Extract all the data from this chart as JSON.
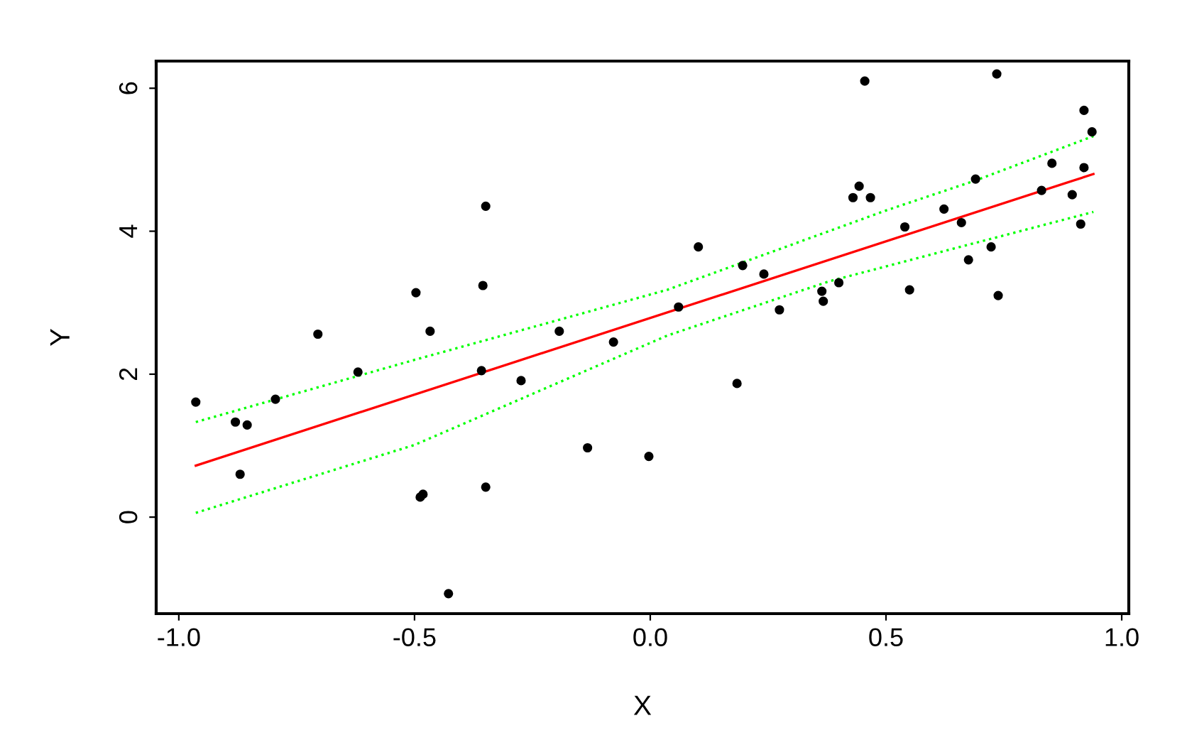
{
  "chart_data": {
    "type": "scatter",
    "xlabel": "X",
    "ylabel": "Y",
    "xlim": [
      -1.048,
      1.015
    ],
    "ylim": [
      -1.35,
      6.38
    ],
    "xticks": [
      {
        "value": -1,
        "label": "-1.0"
      },
      {
        "value": -0.5,
        "label": "-0.5"
      },
      {
        "value": 0,
        "label": "0.0"
      },
      {
        "value": 0.5,
        "label": "0.5"
      },
      {
        "value": 1,
        "label": "1.0"
      }
    ],
    "yticks": [
      0,
      2,
      4,
      6
    ],
    "grid": false,
    "legend": false,
    "series": [
      {
        "color": "#000000",
        "marker": "circle",
        "x": [
          -0.964,
          -0.88,
          -0.855,
          -0.87,
          -0.795,
          -0.705,
          -0.62,
          -0.497,
          -0.467,
          -0.488,
          -0.482,
          -0.428,
          -0.355,
          -0.349,
          -0.358,
          -0.349,
          -0.274,
          -0.193,
          -0.133,
          -0.078,
          -0.003,
          0.06,
          0.102,
          0.184,
          0.196,
          0.241,
          0.274,
          0.364,
          0.367,
          0.4,
          0.43,
          0.443,
          0.467,
          0.455,
          0.54,
          0.55,
          0.623,
          0.66,
          0.675,
          0.69,
          0.723,
          0.735,
          0.738,
          0.83,
          0.852,
          0.895,
          0.913,
          0.92,
          0.92,
          0.937
        ],
        "values": [
          1.61,
          1.33,
          1.29,
          0.6,
          1.65,
          2.56,
          2.03,
          3.14,
          2.6,
          0.28,
          0.32,
          -1.07,
          3.24,
          4.35,
          2.05,
          0.42,
          1.91,
          2.6,
          0.97,
          2.45,
          0.85,
          2.94,
          3.78,
          1.87,
          3.52,
          3.4,
          2.9,
          3.16,
          3.02,
          3.28,
          4.47,
          4.63,
          4.47,
          6.1,
          4.06,
          3.18,
          4.31,
          4.12,
          3.6,
          4.73,
          3.78,
          6.2,
          3.1,
          4.57,
          4.95,
          4.51,
          4.1,
          4.89,
          5.69,
          5.39
        ]
      },
      {
        "type": "line",
        "color": "#ff0000",
        "line_style": "solid",
        "x": [
          -0.964,
          0.94
        ],
        "values": [
          0.72,
          4.8
        ]
      },
      {
        "type": "line",
        "color": "#00ff00",
        "line_style": "dotted",
        "x": [
          -0.964,
          -0.5,
          0.036,
          0.5,
          0.69,
          0.94
        ],
        "values": [
          1.33,
          2.2,
          3.18,
          4.29,
          4.71,
          5.33
        ]
      },
      {
        "type": "line",
        "color": "#00ff00",
        "line_style": "dotted",
        "x": [
          -0.964,
          -0.5,
          0.036,
          0.38,
          0.94
        ],
        "values": [
          0.06,
          1.01,
          2.54,
          3.3,
          4.27
        ]
      }
    ]
  }
}
